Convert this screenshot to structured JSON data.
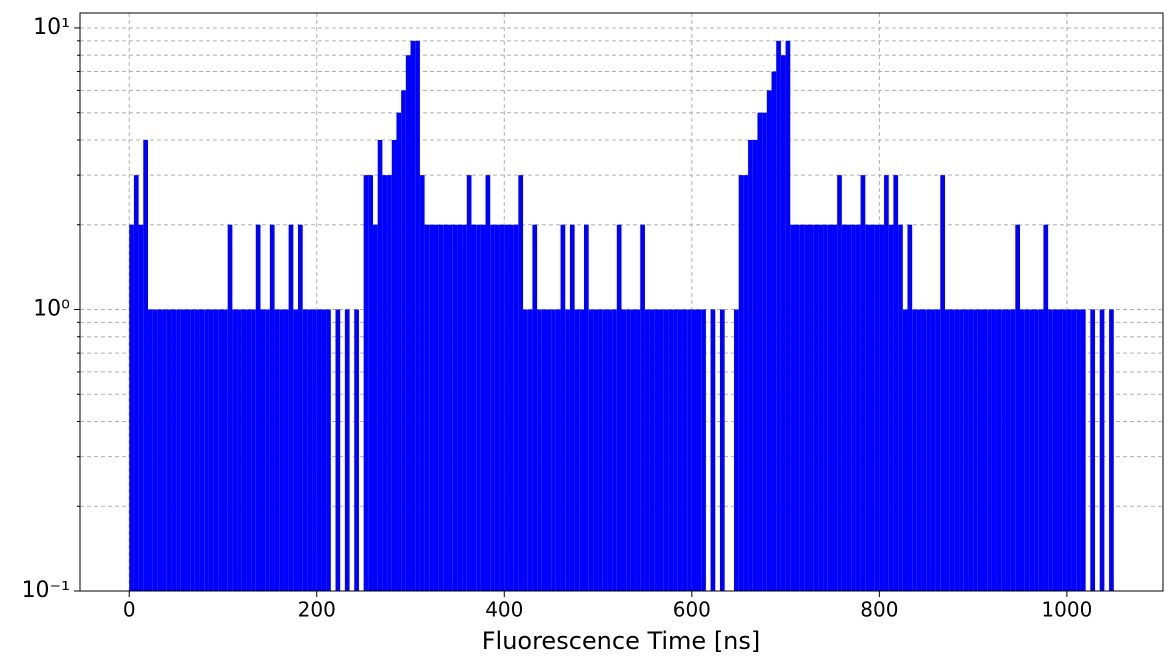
{
  "chart_data": {
    "type": "histogram",
    "xlabel": "Fluorescence Time [ns]",
    "color": "#0000ff",
    "log_y": true,
    "grid": true,
    "xlim": [
      -52.5,
      1102.5
    ],
    "ylim": [
      0.1,
      11.3
    ],
    "xticks": [
      0,
      200,
      400,
      600,
      800,
      1000
    ],
    "yticks": [
      {
        "value": 0.1,
        "label": "10⁻¹"
      },
      {
        "value": 1,
        "label": "10⁰"
      },
      {
        "value": 10,
        "label": "10¹"
      }
    ],
    "yminor_ticks": [
      0.2,
      0.3,
      0.4,
      0.5,
      0.6,
      0.7,
      0.8,
      0.9,
      2,
      3,
      4,
      5,
      6,
      7,
      8,
      9
    ],
    "bins": [
      0,
      5,
      10,
      15,
      20,
      25,
      30,
      35,
      40,
      45,
      50,
      55,
      60,
      65,
      70,
      75,
      80,
      85,
      90,
      95,
      100,
      105,
      110,
      115,
      120,
      125,
      130,
      135,
      140,
      145,
      150,
      155,
      160,
      165,
      170,
      175,
      180,
      185,
      190,
      195,
      200,
      205,
      210,
      215,
      220,
      225,
      230,
      235,
      240,
      245,
      250,
      255,
      260,
      265,
      270,
      275,
      280,
      285,
      290,
      295,
      300,
      305,
      310,
      315,
      320,
      325,
      330,
      335,
      340,
      345,
      350,
      355,
      360,
      365,
      370,
      375,
      380,
      385,
      390,
      395,
      400,
      405,
      410,
      415,
      420,
      425,
      430,
      435,
      440,
      445,
      450,
      455,
      460,
      465,
      470,
      475,
      480,
      485,
      490,
      495,
      500,
      505,
      510,
      515,
      520,
      525,
      530,
      535,
      540,
      545,
      550,
      555,
      560,
      565,
      570,
      575,
      580,
      585,
      590,
      595,
      600,
      605,
      610,
      615,
      620,
      625,
      630,
      635,
      640,
      645,
      650,
      655,
      660,
      665,
      670,
      675,
      680,
      685,
      690,
      695,
      700,
      705,
      710,
      715,
      720,
      725,
      730,
      735,
      740,
      745,
      750,
      755,
      760,
      765,
      770,
      775,
      780,
      785,
      790,
      795,
      800,
      805,
      810,
      815,
      820,
      825,
      830,
      835,
      840,
      845,
      850,
      855,
      860,
      865,
      870,
      875,
      880,
      885,
      890,
      895,
      900,
      905,
      910,
      915,
      920,
      925,
      930,
      935,
      940,
      945,
      950,
      955,
      960,
      965,
      970,
      975,
      980,
      985,
      990,
      995,
      1000,
      1005,
      1010,
      1015,
      1020,
      1025,
      1030,
      1035,
      1040,
      1045,
      1050
    ],
    "values": [
      2,
      3,
      2,
      4,
      1,
      1,
      1,
      1,
      1,
      1,
      1,
      1,
      1,
      1,
      1,
      1,
      1,
      1,
      1,
      1,
      1,
      2,
      1,
      1,
      1,
      1,
      1,
      2,
      1,
      1,
      2,
      1,
      1,
      1,
      2,
      1,
      2,
      1,
      1,
      1,
      1,
      1,
      1,
      0,
      1,
      0,
      1,
      0,
      1,
      0,
      3,
      3,
      2,
      4,
      3,
      3,
      4,
      5,
      6,
      8,
      9,
      9,
      3,
      2,
      2,
      2,
      2,
      2,
      2,
      2,
      2,
      2,
      3,
      2,
      2,
      2,
      3,
      2,
      2,
      2,
      2,
      2,
      2,
      3,
      1,
      1,
      2,
      1,
      1,
      1,
      1,
      1,
      2,
      1,
      2,
      1,
      1,
      2,
      1,
      1,
      1,
      1,
      1,
      1,
      2,
      1,
      1,
      1,
      1,
      2,
      1,
      1,
      1,
      1,
      1,
      1,
      1,
      1,
      1,
      1,
      1,
      1,
      1,
      0,
      1,
      0,
      1,
      0,
      0,
      1,
      3,
      3,
      4,
      4,
      5,
      5,
      6,
      7,
      9,
      8,
      9,
      2,
      2,
      2,
      2,
      2,
      2,
      2,
      2,
      2,
      2,
      3,
      2,
      2,
      2,
      2,
      3,
      2,
      2,
      2,
      2,
      3,
      2,
      3,
      2,
      1,
      2,
      1,
      1,
      1,
      1,
      1,
      1,
      3,
      1,
      1,
      1,
      1,
      1,
      1,
      1,
      1,
      1,
      1,
      1,
      1,
      1,
      1,
      1,
      2,
      1,
      1,
      1,
      1,
      1,
      2,
      1,
      1,
      1,
      1,
      1,
      1,
      1,
      1,
      0,
      1,
      0,
      1,
      0,
      1
    ]
  }
}
